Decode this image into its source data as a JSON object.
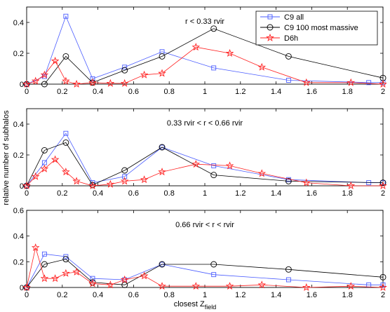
{
  "chart_data": {
    "type": "line",
    "ylabel": "relative number of subhalos",
    "xlabel_main": "closest Z",
    "xlabel_sub": "field",
    "xlim": [
      0,
      2
    ],
    "xticks": [
      "0",
      "0.2",
      "0.4",
      "0.6",
      "0.8",
      "1",
      "1.2",
      "1.4",
      "1.6",
      "1.8",
      "2"
    ],
    "grid": false,
    "legend_position": "top-right",
    "legend": [
      {
        "label": "C9 all",
        "series": "c9all"
      },
      {
        "label": "C9 100 most massive",
        "series": "c9massive"
      },
      {
        "label": "D6h",
        "series": "d6h"
      }
    ],
    "series_styles": {
      "c9all": {
        "color": "#4a5cff",
        "marker": "square"
      },
      "c9massive": {
        "color": "#000000",
        "marker": "circle"
      },
      "d6h": {
        "color": "#ff2020",
        "marker": "star"
      }
    },
    "panels": [
      {
        "title": "r < 0.33 rvir",
        "ylim": [
          0,
          0.5
        ],
        "yticks": [
          "0",
          "0.2",
          "0.4"
        ],
        "series": [
          {
            "key": "c9all",
            "x": [
              0,
              0.1,
              0.22,
              0.37,
              0.55,
              0.76,
              1.05,
              1.47,
              1.92,
              2
            ],
            "y": [
              0,
              0.05,
              0.44,
              0.035,
              0.11,
              0.21,
              0.105,
              0.025,
              0.01,
              0.01
            ]
          },
          {
            "key": "c9massive",
            "x": [
              0,
              0.1,
              0.22,
              0.37,
              0.55,
              0.76,
              1.05,
              1.47,
              2
            ],
            "y": [
              0,
              0,
              0.18,
              0.01,
              0.09,
              0.18,
              0.36,
              0.18,
              0.04
            ]
          },
          {
            "key": "d6h",
            "x": [
              0,
              0.05,
              0.1,
              0.16,
              0.22,
              0.28,
              0.37,
              0.47,
              0.55,
              0.66,
              0.76,
              0.95,
              1.14,
              1.32,
              1.57,
              1.82,
              2
            ],
            "y": [
              0,
              0.02,
              0.06,
              0.15,
              0.02,
              0,
              0.01,
              0.005,
              0.005,
              0.06,
              0.07,
              0.24,
              0.2,
              0.11,
              0.01,
              0.01,
              0
            ]
          }
        ]
      },
      {
        "title": "0.33 rvir < r < 0.66 rvir",
        "ylim": [
          0,
          0.5
        ],
        "yticks": [
          "0",
          "0.2",
          "0.4"
        ],
        "series": [
          {
            "key": "c9all",
            "x": [
              0,
              0.1,
              0.22,
              0.37,
              0.55,
              0.76,
              1.05,
              1.47,
              1.92,
              2
            ],
            "y": [
              0,
              0.15,
              0.34,
              0.02,
              0.06,
              0.25,
              0.13,
              0.04,
              0.02,
              0.02
            ]
          },
          {
            "key": "c9massive",
            "x": [
              0,
              0.1,
              0.22,
              0.37,
              0.55,
              0.76,
              1.05,
              1.47,
              2
            ],
            "y": [
              0,
              0.23,
              0.28,
              0.005,
              0.1,
              0.25,
              0.07,
              0.03,
              0.02
            ]
          },
          {
            "key": "d6h",
            "x": [
              0,
              0.05,
              0.1,
              0.16,
              0.22,
              0.28,
              0.37,
              0.47,
              0.55,
              0.66,
              0.76,
              0.95,
              1.14,
              1.32,
              1.57,
              1.82,
              2
            ],
            "y": [
              0,
              0.06,
              0.11,
              0.17,
              0.09,
              0.03,
              0,
              0.01,
              0.03,
              0.04,
              0.09,
              0.14,
              0.13,
              0.08,
              0.02,
              0,
              0
            ]
          }
        ]
      },
      {
        "title": "0.66 rvir < r < rvir",
        "ylim": [
          0,
          0.6
        ],
        "yticks": [
          "0",
          "0.2",
          "0.4",
          "0.6"
        ],
        "series": [
          {
            "key": "c9all",
            "x": [
              0,
              0.1,
              0.22,
              0.37,
              0.55,
              0.76,
              1.05,
              1.47,
              1.92,
              2
            ],
            "y": [
              0,
              0.26,
              0.24,
              0.07,
              0.06,
              0.18,
              0.1,
              0.06,
              0.02,
              0.02
            ]
          },
          {
            "key": "c9massive",
            "x": [
              0,
              0.1,
              0.22,
              0.37,
              0.55,
              0.76,
              1.05,
              1.47,
              2
            ],
            "y": [
              0,
              0.18,
              0.22,
              0.04,
              0.02,
              0.18,
              0.18,
              0.14,
              0.08
            ]
          },
          {
            "key": "d6h",
            "x": [
              0,
              0.05,
              0.1,
              0.16,
              0.22,
              0.28,
              0.37,
              0.47,
              0.55,
              0.66,
              0.76,
              0.95,
              1.14,
              1.32,
              1.57,
              1.82,
              2
            ],
            "y": [
              0,
              0.31,
              0.07,
              0.07,
              0.11,
              0.12,
              0.03,
              0.02,
              0.06,
              0.09,
              0.01,
              0.01,
              0.01,
              0.02,
              0,
              0.01,
              0
            ]
          }
        ]
      }
    ]
  }
}
